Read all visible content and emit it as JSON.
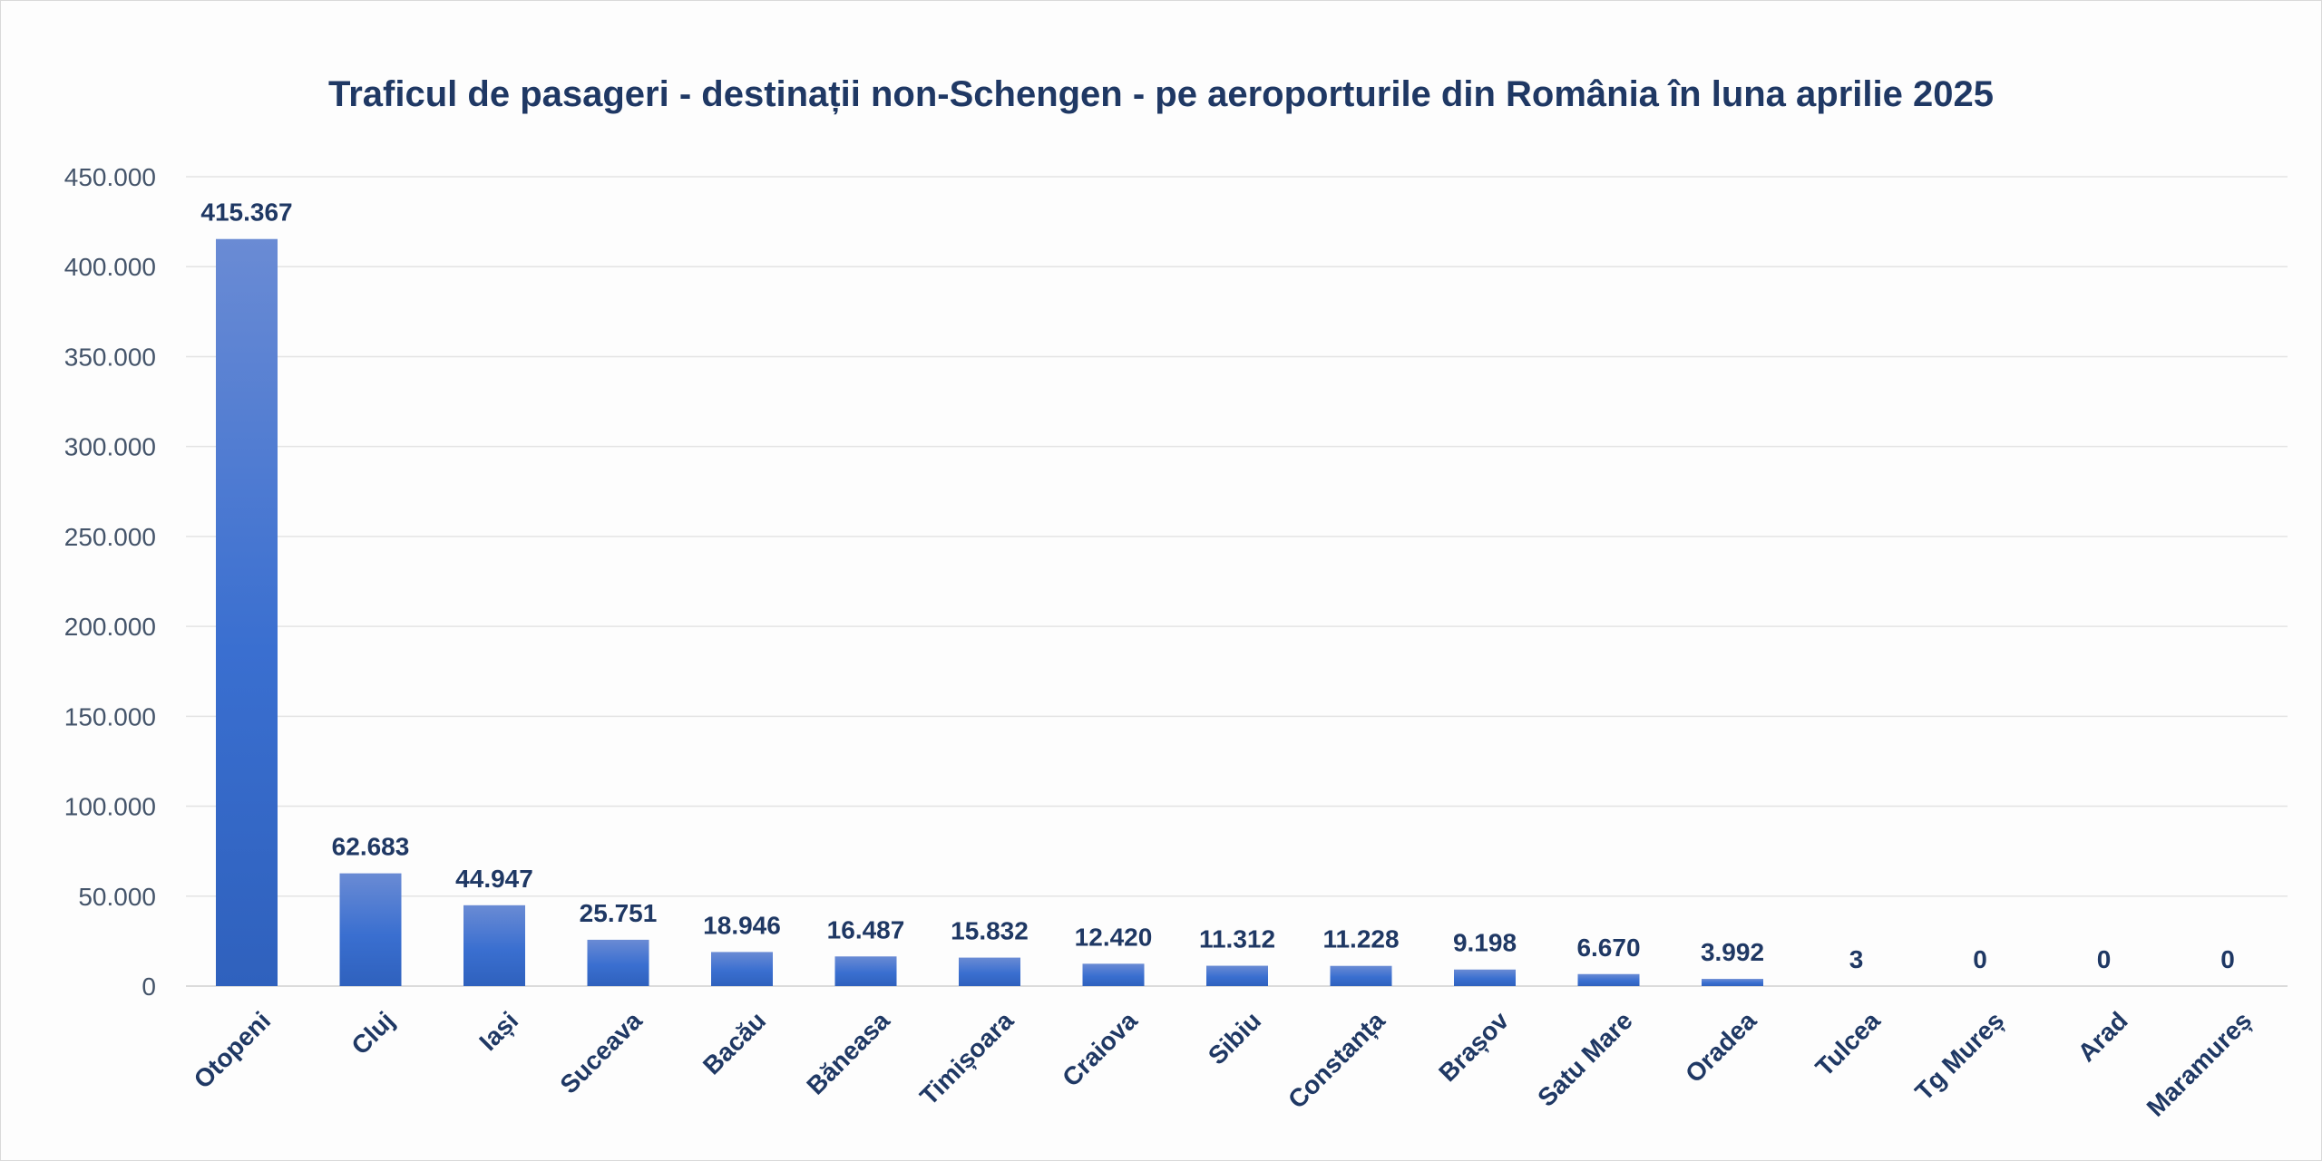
{
  "chart_data": {
    "type": "bar",
    "title": "Traficul de pasageri - destinații non-Schengen - pe aeroporturile din România în luna aprilie 2025",
    "categories": [
      "Otopeni",
      "Cluj",
      "Iași",
      "Suceava",
      "Bacău",
      "Băneasa",
      "Timișoara",
      "Craiova",
      "Sibiu",
      "Constanța",
      "Brașov",
      "Satu Mare",
      "Oradea",
      "Tulcea",
      "Tg Mureș",
      "Arad",
      "Maramureș"
    ],
    "values": [
      415367,
      62683,
      44947,
      25751,
      18946,
      16487,
      15832,
      12420,
      11312,
      11228,
      9198,
      6670,
      3992,
      3,
      0,
      0,
      0
    ],
    "data_labels": [
      "415.367",
      "62.683",
      "44.947",
      "25.751",
      "18.946",
      "16.487",
      "15.832",
      "12.420",
      "11.312",
      "11.228",
      "9.198",
      "6.670",
      "3.992",
      "3",
      "0",
      "0",
      "0"
    ],
    "yticks": [
      0,
      50000,
      100000,
      150000,
      200000,
      250000,
      300000,
      350000,
      400000,
      450000
    ],
    "ytick_labels": [
      "0",
      "50.000",
      "100.000",
      "150.000",
      "200.000",
      "250.000",
      "300.000",
      "350.000",
      "400.000",
      "450.000"
    ],
    "ylim": [
      0,
      450000
    ],
    "xlabel": "",
    "ylabel": "",
    "grid": true,
    "legend": "none",
    "colors": {
      "bar_top": "#6a8bd4",
      "bar_mid": "#3a6fd0",
      "bar_bottom": "#2f61bd",
      "text": "#1f3864",
      "axis_text": "#44546a",
      "grid": "#e4e4e4"
    }
  }
}
